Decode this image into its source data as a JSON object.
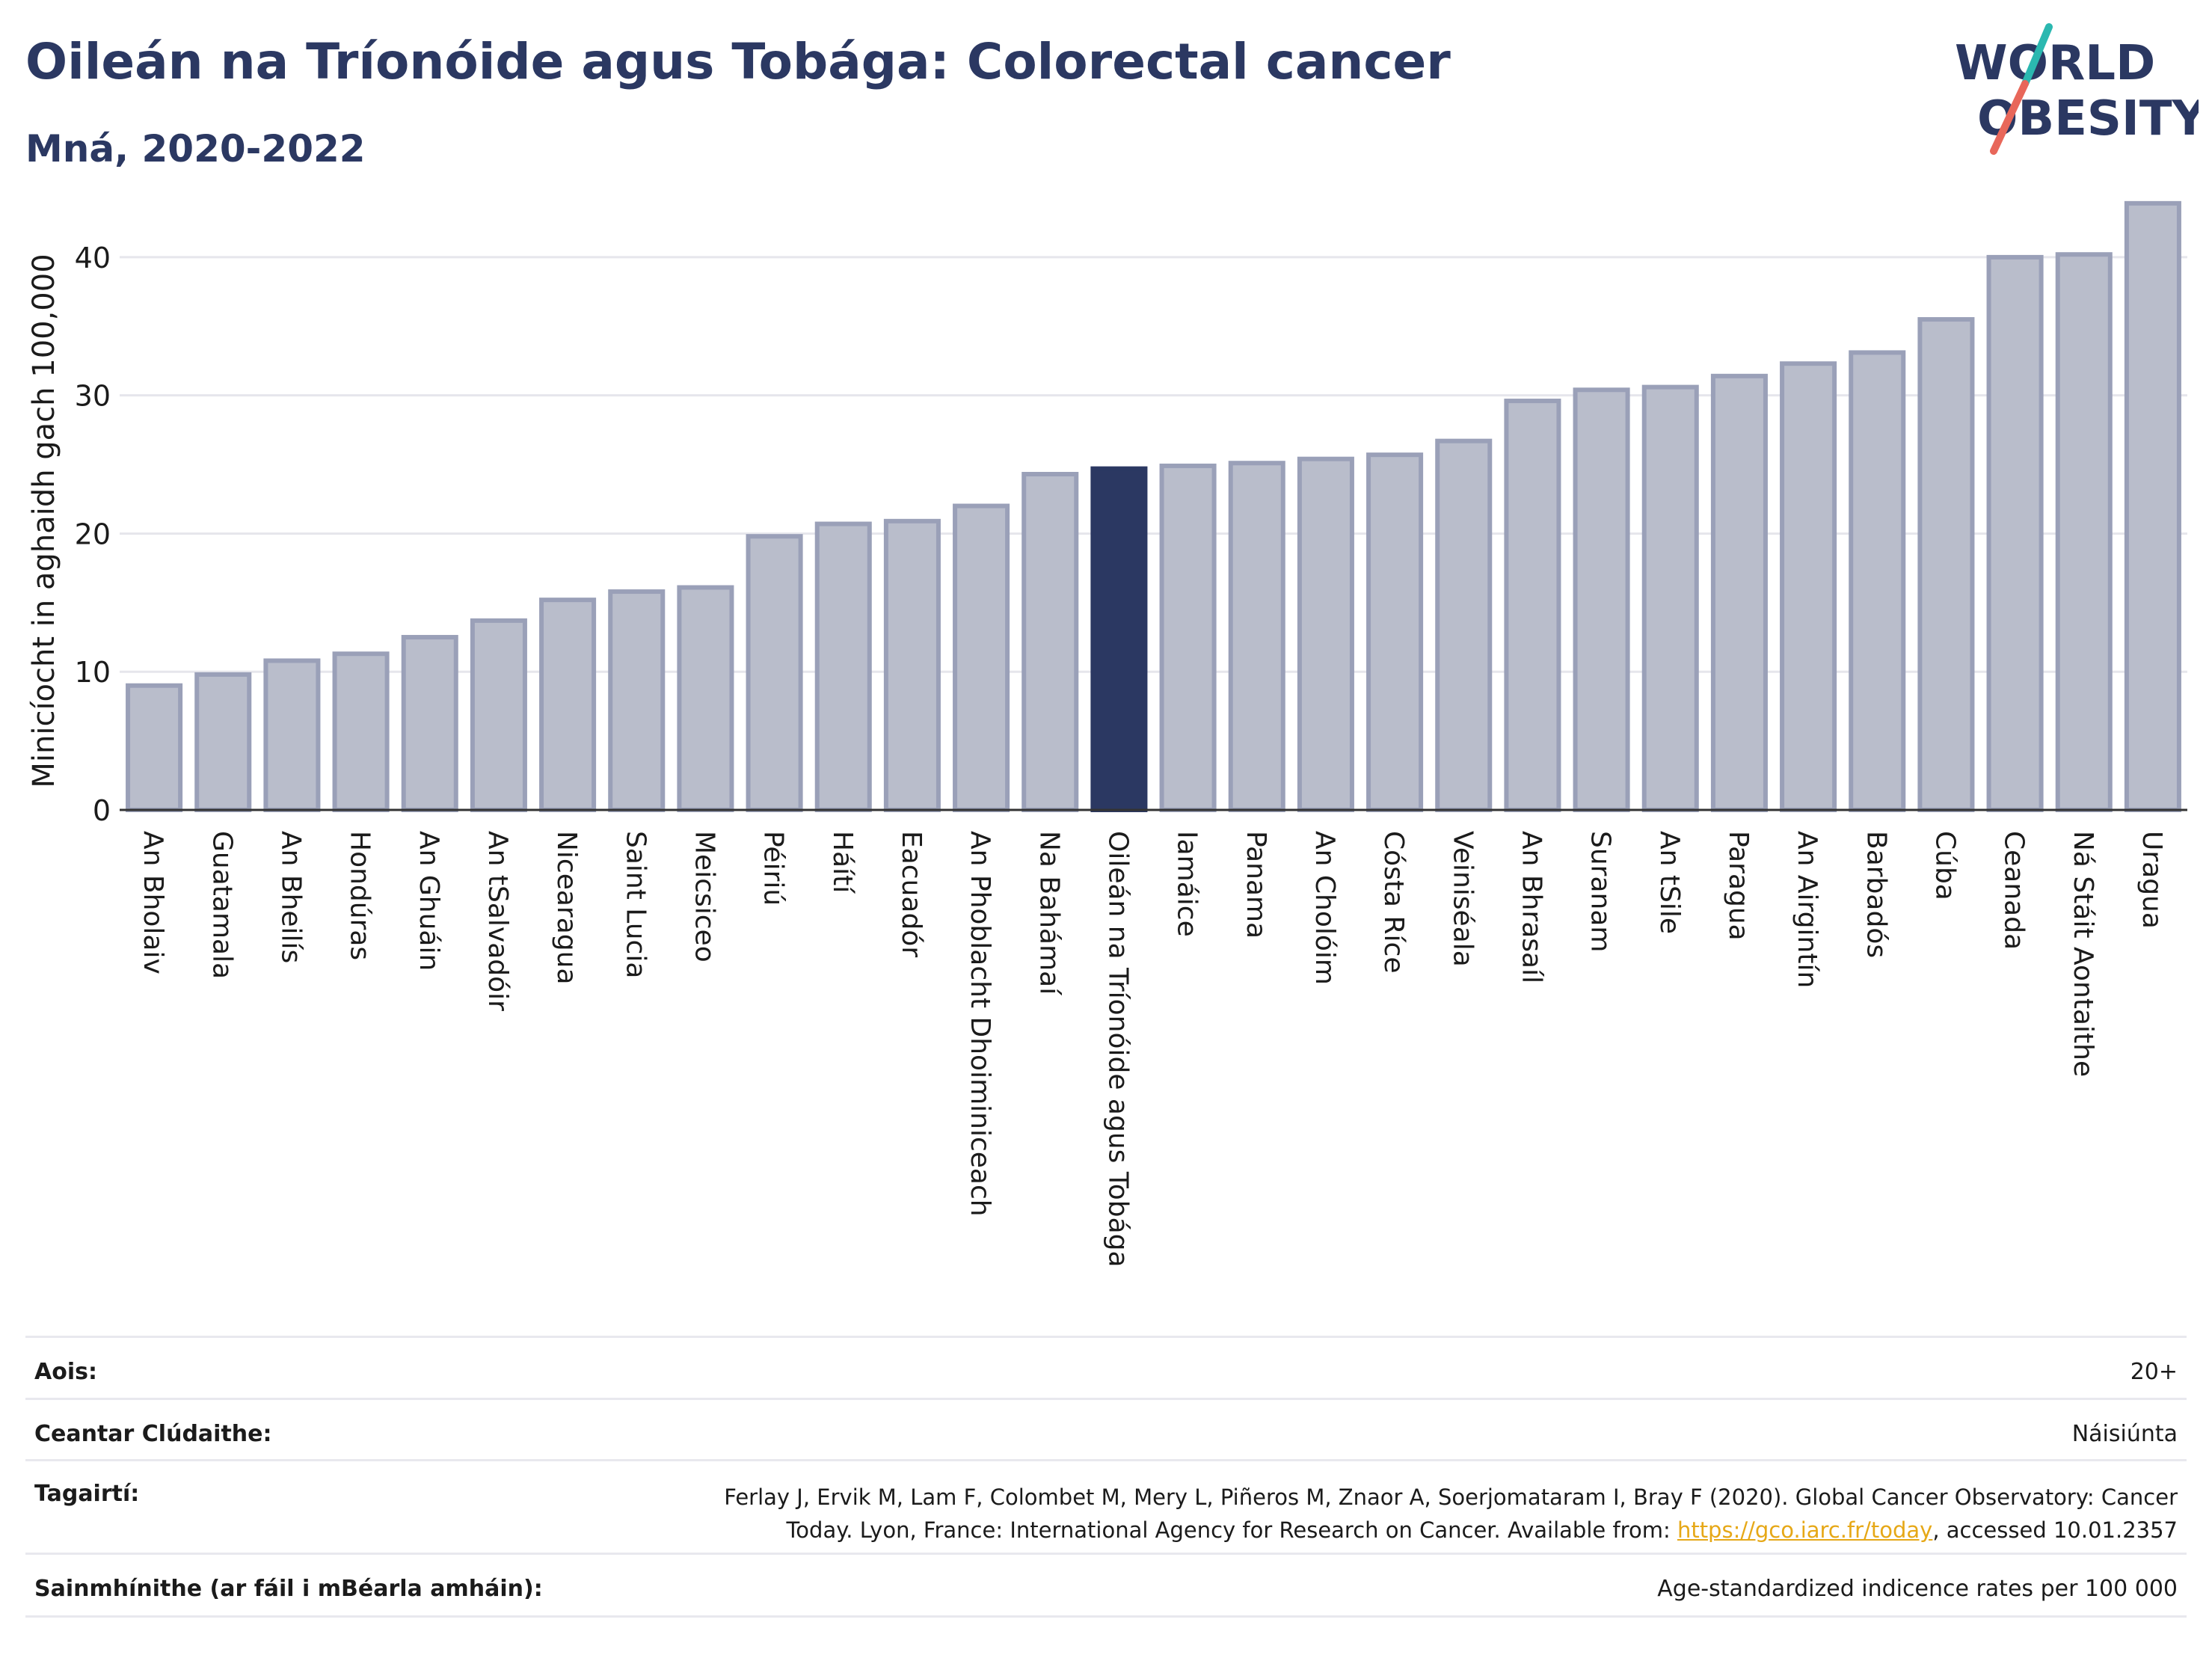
{
  "header": {
    "title": "Oileán na Tríonóide agus Tobága: Colorectal cancer",
    "subtitle": "Mná, 2020-2022"
  },
  "logo": {
    "line1": "WORLD",
    "line2": "OBESITY",
    "slash_colors": [
      "#2bb8b0",
      "#e8675a"
    ],
    "text_color": "#2b3862"
  },
  "colors": {
    "bar_default": "#b9bdcb",
    "bar_default_stroke": "#9aa0b8",
    "bar_highlight": "#2b3862",
    "axis": "#333333",
    "grid": "#e6e6ec"
  },
  "chart_data": {
    "type": "bar",
    "ylabel": "Minicíocht in aghaidh gach 100,000",
    "ylim": [
      0,
      44
    ],
    "yticks": [
      0,
      10,
      20,
      30,
      40
    ],
    "grid": true,
    "highlight": "Oileán na Tríonóide agus Tobága",
    "categories": [
      "An Bholaiv",
      "Guatamala",
      "An Bheilís",
      "Hondúras",
      "An Ghuáin",
      "An tSalvadóir",
      "Nicearagua",
      "Saint Lucia",
      "Meicsiceo",
      "Péiriú",
      "Háítí",
      "Eacuadór",
      "An Phoblacht Dhoiminiceach",
      "Na Bahámaí",
      "Oileán na Tríonóide agus Tobága",
      "Iamáice",
      "Panama",
      "An Cholóim",
      "Cósta Ríce",
      "Veiniséala",
      "An Bhrasaíl",
      "Suranam",
      "An tSile",
      "Paragua",
      "An Airgintín",
      "Barbadós",
      "Cúba",
      "Ceanada",
      "Ná Stáit Aontaithe",
      "Uragua"
    ],
    "values": [
      9.0,
      9.8,
      10.8,
      11.3,
      12.5,
      13.7,
      15.2,
      15.8,
      16.1,
      19.8,
      20.7,
      20.9,
      22.0,
      24.3,
      24.7,
      24.9,
      25.1,
      25.4,
      25.7,
      26.7,
      29.6,
      30.4,
      30.6,
      31.4,
      32.3,
      33.1,
      35.5,
      40.0,
      40.2,
      43.9
    ]
  },
  "meta": {
    "rows": [
      {
        "label": "Aois:",
        "value": "20+"
      },
      {
        "label": "Ceantar Clúdaithe:",
        "value": "Náisiúnta"
      },
      {
        "label": "Tagairtí:",
        "value_line1": "Ferlay J, Ervik M, Lam F, Colombet M, Mery L, Piñeros M, Znaor A, Soerjomataram I, Bray F (2020). Global Cancer Observatory: Cancer",
        "value_line2_pre": "Today. Lyon, France: International Agency for Research on Cancer. Available from: ",
        "value_link": "https://gco.iarc.fr/today",
        "value_line2_post": ", accessed 10.01.2357"
      },
      {
        "label": "Sainmhínithe (ar fáil i mBéarla amháin):",
        "value": "Age-standardized indicence rates per 100 000"
      }
    ]
  }
}
